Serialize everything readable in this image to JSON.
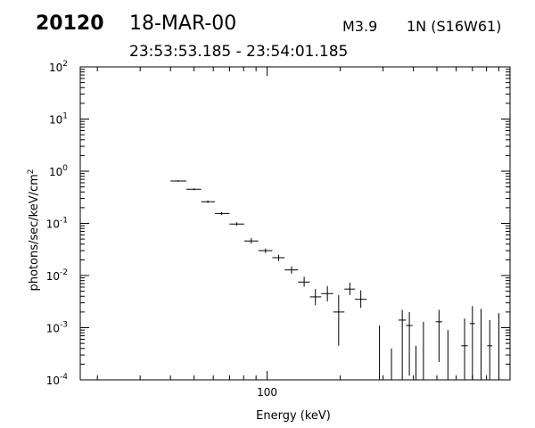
{
  "header": {
    "event_id": "20120",
    "date": "18-MAR-00",
    "flare_class": "M3.9",
    "flare_location": "1N (S16W61)",
    "time_range": "23:53:53.185 - 23:54:01.185"
  },
  "chart_data": {
    "type": "scatter",
    "title": "",
    "xlabel": "Energy (keV)",
    "ylabel": "photons/sec/keV/cm^2",
    "xscale": "log",
    "yscale": "log",
    "xlim": [
      17,
      1000
    ],
    "ylim": [
      0.0001,
      100
    ],
    "x_major_ticks": [
      {
        "value": 100,
        "label": "100"
      }
    ],
    "x_minor_ticks": [
      20,
      30,
      40,
      50,
      60,
      70,
      80,
      90,
      200,
      300,
      400,
      500,
      600,
      700,
      800,
      900
    ],
    "y_ticks": [
      {
        "value": 0.0001,
        "base": "10",
        "exp": "-4"
      },
      {
        "value": 0.001,
        "base": "10",
        "exp": "-3"
      },
      {
        "value": 0.01,
        "base": "10",
        "exp": "-2"
      },
      {
        "value": 0.1,
        "base": "10",
        "exp": "-1"
      },
      {
        "value": 1,
        "base": "10",
        "exp": "0"
      },
      {
        "value": 10,
        "base": "10",
        "exp": "1"
      },
      {
        "value": 100,
        "base": "10",
        "exp": "2"
      }
    ],
    "grid": false,
    "legend": "none",
    "series": [
      {
        "points": [
          {
            "x": 43,
            "xlo": 40,
            "xhi": 46.5,
            "y": 0.65,
            "ylo": 0.63,
            "yhi": 0.67
          },
          {
            "x": 50,
            "xlo": 46.5,
            "xhi": 53.5,
            "y": 0.45,
            "ylo": 0.43,
            "yhi": 0.47
          },
          {
            "x": 57,
            "xlo": 53.5,
            "xhi": 61,
            "y": 0.26,
            "ylo": 0.245,
            "yhi": 0.275
          },
          {
            "x": 65,
            "xlo": 61,
            "xhi": 70,
            "y": 0.155,
            "ylo": 0.145,
            "yhi": 0.165
          },
          {
            "x": 75,
            "xlo": 70,
            "xhi": 80.5,
            "y": 0.097,
            "ylo": 0.09,
            "yhi": 0.105
          },
          {
            "x": 86,
            "xlo": 80.5,
            "xhi": 92,
            "y": 0.046,
            "ylo": 0.041,
            "yhi": 0.052
          },
          {
            "x": 98.5,
            "xlo": 92,
            "xhi": 105,
            "y": 0.03,
            "ylo": 0.027,
            "yhi": 0.033
          },
          {
            "x": 111.5,
            "xlo": 105,
            "xhi": 118,
            "y": 0.022,
            "ylo": 0.019,
            "yhi": 0.025
          },
          {
            "x": 126,
            "xlo": 118,
            "xhi": 134,
            "y": 0.0128,
            "ylo": 0.0108,
            "yhi": 0.015
          },
          {
            "x": 142,
            "xlo": 134,
            "xhi": 150,
            "y": 0.0075,
            "ylo": 0.0061,
            "yhi": 0.0095
          },
          {
            "x": 158,
            "xlo": 150,
            "xhi": 167,
            "y": 0.0039,
            "ylo": 0.0027,
            "yhi": 0.0055
          },
          {
            "x": 177,
            "xlo": 167,
            "xhi": 187,
            "y": 0.0045,
            "ylo": 0.0032,
            "yhi": 0.0063
          },
          {
            "x": 197,
            "xlo": 187,
            "xhi": 208,
            "y": 0.002,
            "ylo": 0.00045,
            "yhi": 0.0042
          },
          {
            "x": 219,
            "xlo": 208,
            "xhi": 230,
            "y": 0.0055,
            "ylo": 0.0042,
            "yhi": 0.0073
          },
          {
            "x": 243,
            "xlo": 230,
            "xhi": 257,
            "y": 0.0035,
            "ylo": 0.0024,
            "yhi": 0.0052
          },
          {
            "x": 290,
            "xlo": 290,
            "xhi": 290,
            "y": 0.0001,
            "ylo": 0.0001,
            "yhi": 0.0011
          },
          {
            "x": 325,
            "xlo": 325,
            "xhi": 325,
            "y": 0.0001,
            "ylo": 0.0001,
            "yhi": 0.0004
          },
          {
            "x": 360,
            "xlo": 347,
            "xhi": 373,
            "y": 0.0014,
            "ylo": 0.0001,
            "yhi": 0.0022
          },
          {
            "x": 385,
            "xlo": 373,
            "xhi": 397,
            "y": 0.0011,
            "ylo": 0.00012,
            "yhi": 0.002
          },
          {
            "x": 410,
            "xlo": 410,
            "xhi": 410,
            "y": 0.0001,
            "ylo": 0.0001,
            "yhi": 0.00045
          },
          {
            "x": 440,
            "xlo": 440,
            "xhi": 440,
            "y": 0.0001,
            "ylo": 0.0001,
            "yhi": 0.0013
          },
          {
            "x": 510,
            "xlo": 494,
            "xhi": 526,
            "y": 0.0013,
            "ylo": 0.00022,
            "yhi": 0.0022
          },
          {
            "x": 555,
            "xlo": 555,
            "xhi": 555,
            "y": 0.0001,
            "ylo": 0.0001,
            "yhi": 0.0009
          },
          {
            "x": 650,
            "xlo": 630,
            "xhi": 670,
            "y": 0.00045,
            "ylo": 0.0001,
            "yhi": 0.0015
          },
          {
            "x": 700,
            "xlo": 683,
            "xhi": 717,
            "y": 0.0012,
            "ylo": 0.0001,
            "yhi": 0.0026
          },
          {
            "x": 760,
            "xlo": 760,
            "xhi": 760,
            "y": 0.0001,
            "ylo": 0.0001,
            "yhi": 0.0023
          },
          {
            "x": 825,
            "xlo": 805,
            "xhi": 845,
            "y": 0.00045,
            "ylo": 0.0001,
            "yhi": 0.0014
          },
          {
            "x": 900,
            "xlo": 900,
            "xhi": 900,
            "y": 0.0001,
            "ylo": 0.0001,
            "yhi": 0.0019
          }
        ]
      }
    ]
  }
}
